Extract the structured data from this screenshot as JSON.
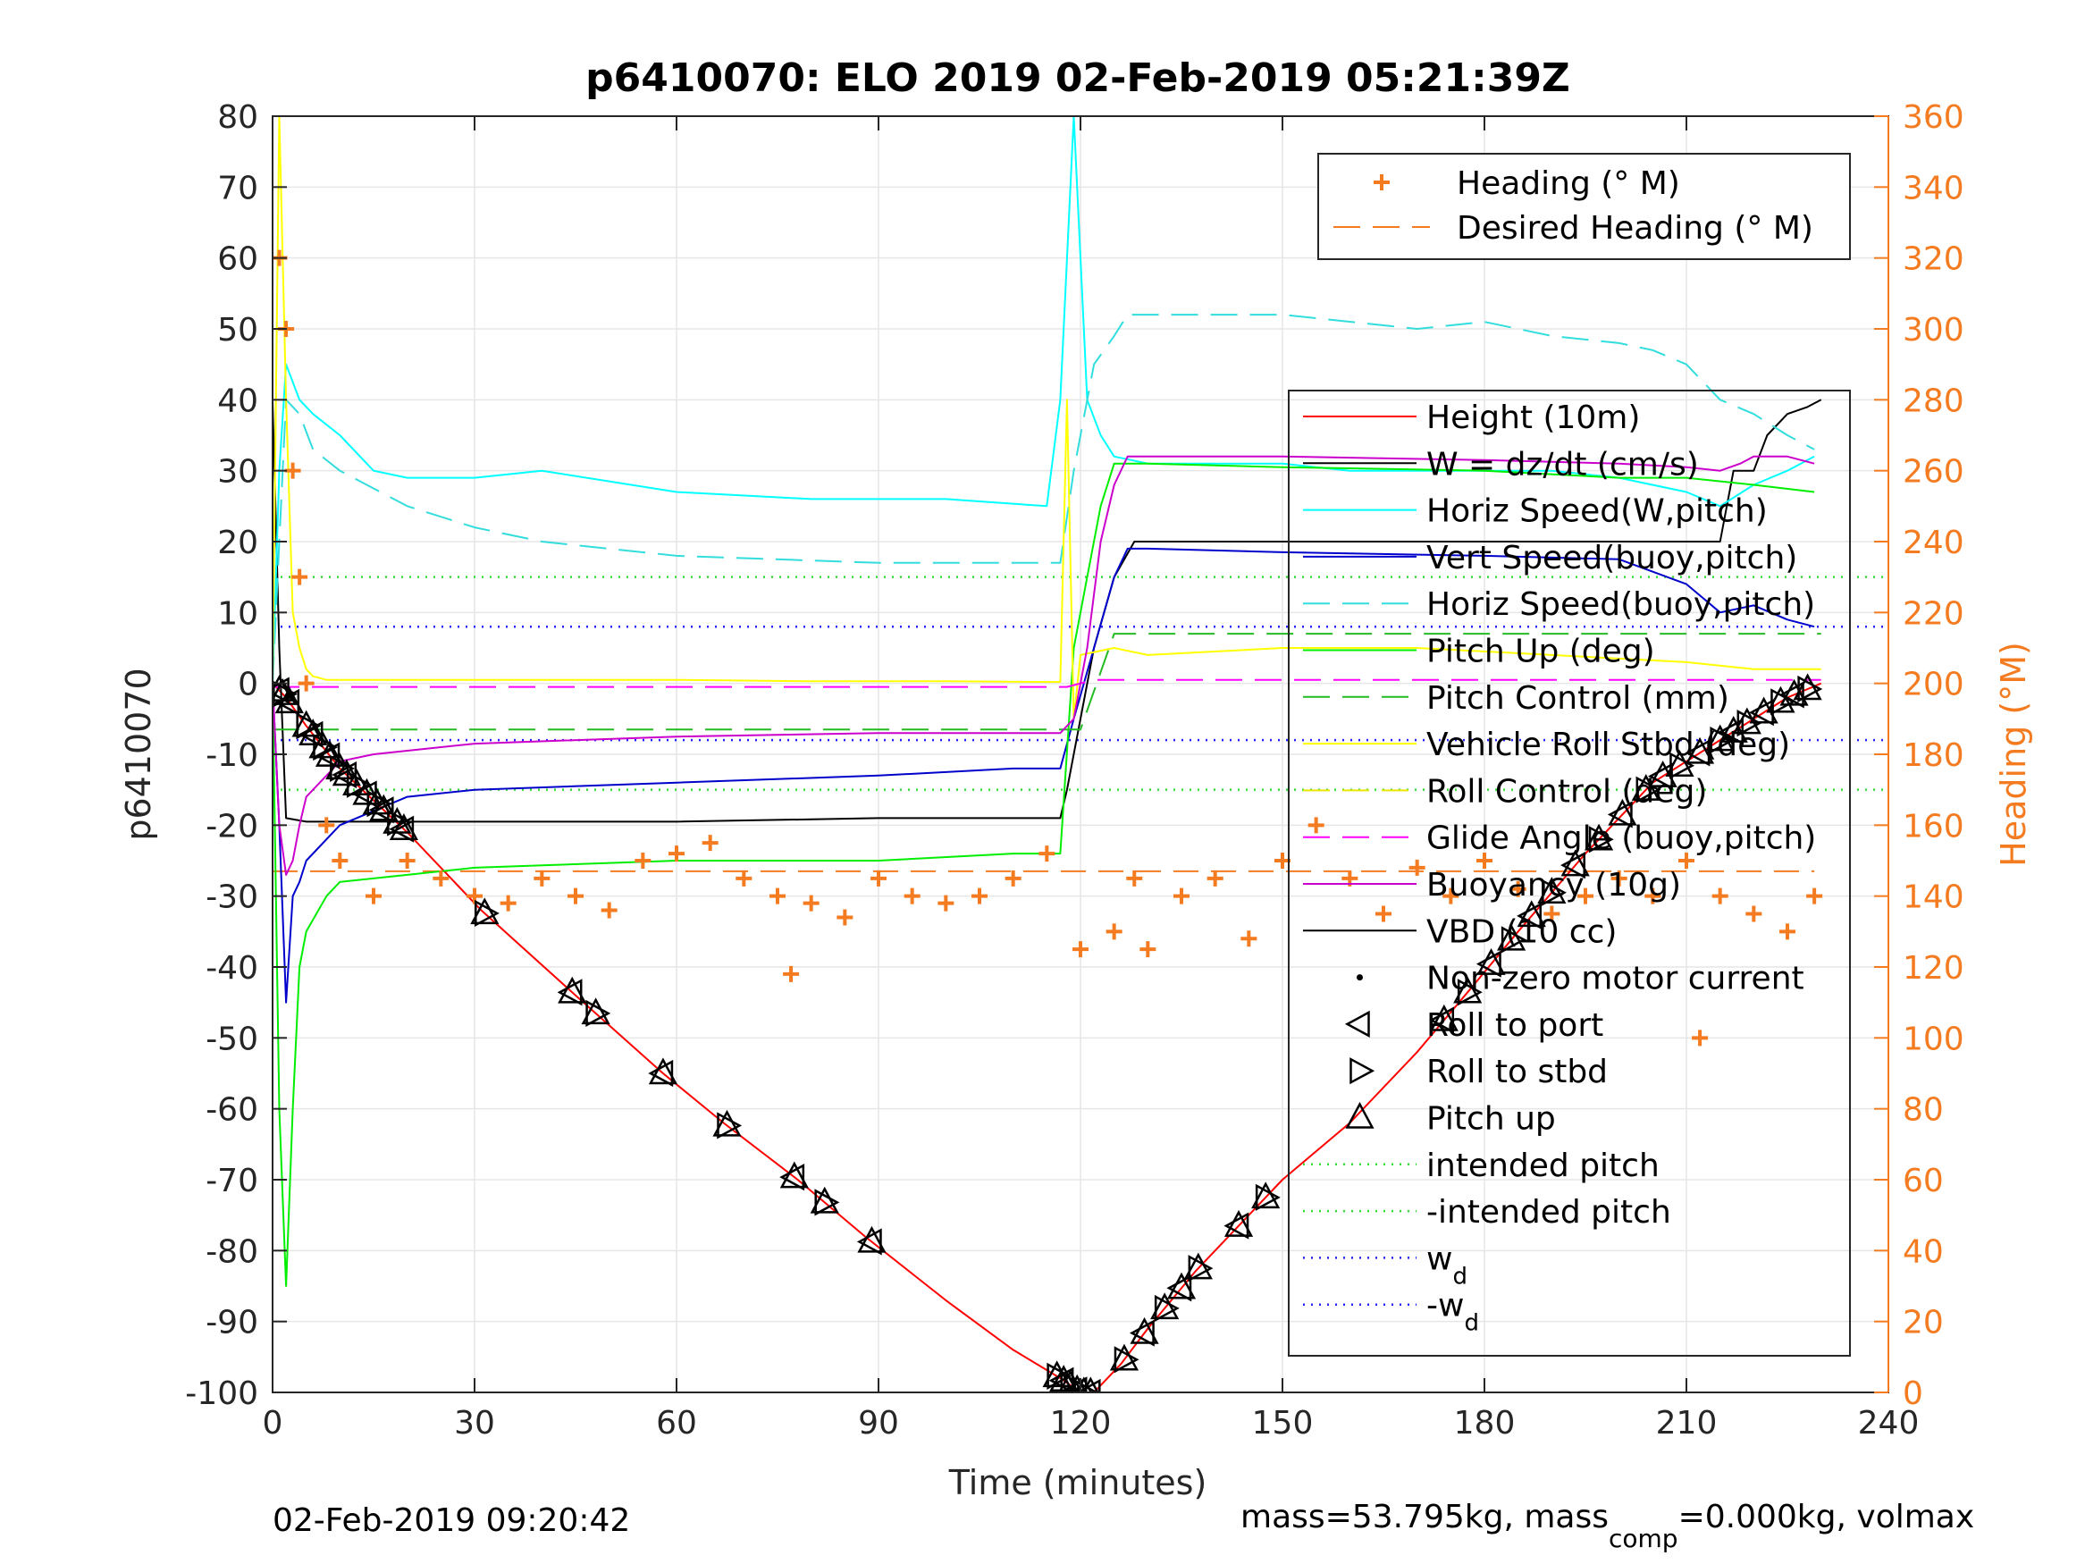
{
  "chart_data": {
    "type": "line",
    "title": "p6410070: ELO 2019 02-Feb-2019 05:21:39Z",
    "xlabel": "Time (minutes)",
    "ylabel": "p6410070",
    "y2label": "Heading (°M)",
    "xlim": [
      0,
      240
    ],
    "ylim": [
      -100,
      80
    ],
    "y2lim": [
      0,
      360
    ],
    "xticks": [
      0,
      30,
      60,
      90,
      120,
      150,
      180,
      210,
      240
    ],
    "yticks": [
      -100,
      -90,
      -80,
      -70,
      -60,
      -50,
      -40,
      -30,
      -20,
      -10,
      0,
      10,
      20,
      30,
      40,
      50,
      60,
      70,
      80
    ],
    "y2ticks": [
      0,
      20,
      40,
      60,
      80,
      100,
      120,
      140,
      160,
      180,
      200,
      220,
      240,
      260,
      280,
      300,
      320,
      340,
      360
    ],
    "grid": true,
    "colors": {
      "height": "#ff0000",
      "w": "#000000",
      "horiz_w": "#00ffff",
      "vert_buoy": "#0000cc",
      "horiz_buoy": "#33dddd",
      "pitch_up": "#00ee00",
      "pitch_control": "#22bb22",
      "roll_stbd": "#ffff00",
      "roll_control": "#e6e600",
      "glide_angle": "#ff00ff",
      "buoyancy": "#cc00cc",
      "vbd": "#000000",
      "heading": "#f47b20",
      "intended_pitch": "#33dd33",
      "wd": "#2222ff"
    },
    "legend_right": {
      "placement": "right",
      "entries": [
        {
          "label": "Height (10m)",
          "style": "solid",
          "color": "#ff0000"
        },
        {
          "label": "W = dz/dt (cm/s)",
          "style": "solid",
          "color": "#000000"
        },
        {
          "label": "Horiz Speed(W,pitch)",
          "style": "solid",
          "color": "#00ffff"
        },
        {
          "label": "Vert Speed(buoy,pitch)",
          "style": "solid",
          "color": "#0000cc"
        },
        {
          "label": "Horiz Speed(buoy,pitch)",
          "style": "dashed",
          "color": "#33dddd"
        },
        {
          "label": "Pitch Up (deg)",
          "style": "solid",
          "color": "#00ee00"
        },
        {
          "label": "Pitch Control (mm)",
          "style": "dashed",
          "color": "#22bb22"
        },
        {
          "label": "Vehicle Roll Stbd (deg)",
          "style": "solid",
          "color": "#ffff00"
        },
        {
          "label": "Roll Control (deg)",
          "style": "dashed",
          "color": "#e6e600"
        },
        {
          "label": "Glide Angle (buoy,pitch)",
          "style": "dashed",
          "color": "#ff00ff"
        },
        {
          "label": "Buoyancy (10g)",
          "style": "solid",
          "color": "#cc00cc"
        },
        {
          "label": "VBD (10 cc)",
          "style": "solid",
          "color": "#000000"
        },
        {
          "label": "Non-zero motor current",
          "style": "dot",
          "color": "#000000"
        },
        {
          "label": "Roll to port",
          "style": "tri-left",
          "color": "#000000"
        },
        {
          "label": "Roll to stbd",
          "style": "tri-right",
          "color": "#000000"
        },
        {
          "label": "Pitch up",
          "style": "tri-up",
          "color": "#000000"
        },
        {
          "label": "intended pitch",
          "style": "dotted",
          "color": "#33dd33"
        },
        {
          "label": "-intended pitch",
          "style": "dotted",
          "color": "#33dd33"
        },
        {
          "label": "w",
          "sub": "d",
          "style": "dotted",
          "color": "#2222ff"
        },
        {
          "label": "-w",
          "sub": "d",
          "style": "dotted",
          "color": "#2222ff"
        }
      ]
    },
    "legend_top": {
      "placement": "top-right",
      "entries": [
        {
          "label": "Heading (° M)",
          "style": "plus",
          "color": "#f47b20"
        },
        {
          "label": "Desired Heading (° M)",
          "style": "dashed",
          "color": "#f47b20"
        }
      ]
    },
    "reference_lines": {
      "intended_pitch": 15,
      "neg_intended_pitch": -15,
      "wd": 8,
      "neg_wd": -8,
      "desired_heading": 147
    },
    "series": [
      {
        "name": "Height (10m)",
        "x": [
          0,
          2,
          5,
          10,
          20,
          31,
          45,
          58,
          67,
          78,
          88,
          100,
          110,
          117,
          120,
          122,
          126,
          130,
          137,
          145,
          150,
          160,
          170,
          178,
          185,
          195,
          205,
          215,
          225,
          230
        ],
        "y": [
          0,
          -2,
          -6,
          -12,
          -21,
          -32,
          -44,
          -55,
          -62,
          -70,
          -78,
          -87,
          -94,
          -98,
          -100,
          -100,
          -96,
          -91,
          -83,
          -75,
          -70,
          -62,
          -52,
          -43,
          -35,
          -24,
          -14,
          -8,
          -2,
          0
        ]
      },
      {
        "name": "W = dz/dt (cm/s)",
        "x": [
          0,
          1,
          2,
          5,
          10,
          30,
          60,
          90,
          117,
          118,
          120,
          122,
          125,
          128,
          150,
          180,
          200,
          210,
          215,
          217,
          220,
          222,
          225,
          228,
          230
        ],
        "y": [
          40,
          5,
          -19,
          -19.5,
          -19.5,
          -19.5,
          -19.5,
          -19,
          -19,
          -15,
          -5,
          5,
          15,
          20,
          20,
          20,
          20,
          20,
          20,
          30,
          30,
          35,
          38,
          39,
          40
        ]
      },
      {
        "name": "Horiz Speed(W,pitch)",
        "x": [
          0,
          1,
          2,
          4,
          6,
          10,
          15,
          20,
          30,
          40,
          60,
          80,
          100,
          115,
          117,
          119,
          121,
          123,
          125,
          130,
          140,
          150,
          160,
          170,
          180,
          190,
          200,
          210,
          215,
          220,
          225,
          229
        ],
        "y": [
          0,
          30,
          45,
          40,
          38,
          35,
          30,
          29,
          29,
          30,
          27,
          26,
          26,
          25,
          40,
          80,
          40,
          35,
          32,
          31,
          31,
          31,
          30,
          30,
          30,
          30,
          29,
          27,
          25,
          28,
          30,
          32
        ]
      },
      {
        "name": "Vert Speed(buoy,pitch)",
        "x": [
          0,
          1,
          2,
          3,
          4,
          5,
          10,
          20,
          30,
          60,
          90,
          110,
          117,
          119,
          122,
          125,
          127,
          130,
          150,
          180,
          200,
          210,
          215,
          220,
          225,
          229
        ],
        "y": [
          0,
          -20,
          -45,
          -30,
          -28,
          -25,
          -20,
          -16,
          -15,
          -14,
          -13,
          -12,
          -12,
          -5,
          5,
          15,
          19,
          19,
          18.5,
          18,
          17.5,
          14,
          10,
          11,
          9,
          8
        ]
      },
      {
        "name": "Horiz Speed(buoy,pitch)",
        "x": [
          0,
          1,
          2,
          4,
          6,
          10,
          20,
          30,
          40,
          60,
          90,
          110,
          117,
          119,
          122,
          125,
          127,
          130,
          150,
          170,
          180,
          190,
          200,
          205,
          210,
          215,
          220,
          225,
          229
        ],
        "y": [
          0,
          20,
          40,
          38,
          33,
          30,
          25,
          22,
          20,
          18,
          17,
          17,
          17,
          30,
          45,
          49,
          52,
          52,
          52,
          50,
          51,
          49,
          48,
          47,
          45,
          40,
          38,
          35,
          33
        ]
      },
      {
        "name": "Pitch Up (deg)",
        "x": [
          0,
          1,
          2,
          3,
          4,
          5,
          8,
          10,
          20,
          30,
          60,
          90,
          110,
          117,
          119,
          121,
          123,
          125,
          130,
          150,
          180,
          200,
          210,
          220,
          229
        ],
        "y": [
          0,
          -60,
          -85,
          -60,
          -40,
          -35,
          -30,
          -28,
          -27,
          -26,
          -25,
          -25,
          -24,
          -24,
          5,
          15,
          25,
          31,
          31,
          30.5,
          30,
          29,
          29,
          28,
          27
        ]
      },
      {
        "name": "Pitch Control (mm)",
        "x": [
          0,
          120,
          125,
          230
        ],
        "y": [
          -6.5,
          -6.5,
          7,
          7
        ]
      },
      {
        "name": "Vehicle Roll Stbd (deg)",
        "x": [
          0,
          1,
          2,
          3,
          4,
          5,
          6,
          8,
          10,
          20,
          40,
          60,
          80,
          100,
          117,
          118,
          119,
          120,
          125,
          130,
          150,
          170,
          190,
          210,
          220,
          230
        ],
        "y": [
          0,
          80,
          40,
          10,
          5,
          2,
          1,
          0.5,
          0.5,
          0.5,
          0.5,
          0.5,
          0.3,
          0.3,
          0.2,
          40,
          -5,
          4,
          5,
          4,
          5,
          5,
          4,
          3,
          2,
          2
        ]
      },
      {
        "name": "Glide Angle (buoy,pitch)",
        "x": [
          0,
          118,
          122,
          230
        ],
        "y": [
          -0.5,
          -0.5,
          0.5,
          0.5
        ]
      },
      {
        "name": "Buoyancy (10g)",
        "x": [
          0,
          1,
          2,
          3,
          4,
          5,
          8,
          10,
          15,
          20,
          30,
          60,
          90,
          117,
          119,
          121,
          123,
          125,
          127,
          150,
          180,
          200,
          210,
          215,
          218,
          220,
          225,
          229
        ],
        "y": [
          0,
          -20,
          -27,
          -25,
          -20,
          -16,
          -13,
          -11,
          -10,
          -9.5,
          -8.5,
          -7.5,
          -7,
          -7,
          -5,
          5,
          20,
          28,
          32,
          32,
          31.5,
          31,
          30.5,
          30,
          31,
          32,
          32,
          31
        ]
      },
      {
        "name": "Heading (° M)",
        "x": [
          1,
          2,
          3,
          4,
          5,
          8,
          10,
          15,
          20,
          25,
          30,
          35,
          40,
          45,
          50,
          55,
          60,
          65,
          70,
          75,
          77,
          80,
          85,
          90,
          95,
          100,
          105,
          110,
          115,
          120,
          125,
          128,
          130,
          135,
          140,
          145,
          150,
          155,
          160,
          165,
          170,
          175,
          180,
          185,
          190,
          195,
          200,
          205,
          210,
          212,
          215,
          220,
          225,
          229
        ],
        "y": [
          320,
          300,
          260,
          230,
          200,
          160,
          150,
          140,
          150,
          145,
          140,
          138,
          145,
          140,
          136,
          150,
          152,
          155,
          145,
          140,
          118,
          138,
          134,
          145,
          140,
          138,
          140,
          145,
          152,
          125,
          130,
          145,
          125,
          140,
          145,
          128,
          150,
          160,
          145,
          135,
          148,
          140,
          150,
          142,
          135,
          140,
          145,
          140,
          150,
          100,
          140,
          135,
          130,
          140
        ]
      }
    ],
    "motor_events": {
      "pitch_up_roll_x": [
        1,
        1.5,
        2.5,
        5,
        6,
        7.5,
        8.5,
        10,
        11,
        12.5,
        14,
        15.5,
        16.5,
        18.5,
        19.5,
        31.5,
        44.5,
        48,
        58,
        67.5,
        77.5,
        82,
        89,
        116.5,
        117.5,
        118.5,
        119.5,
        120.5,
        121.5,
        126.5,
        129.5,
        132.5,
        135,
        137.5,
        143.5,
        147.5,
        174,
        177.5,
        181,
        184,
        187,
        190,
        193.5,
        197,
        200.5,
        204,
        206.5,
        209,
        212,
        215,
        217,
        219,
        221.5,
        224,
        226,
        228
      ]
    }
  },
  "footer": {
    "left": "02-Feb-2019 09:20:42",
    "right_prefix": "mass=53.795kg, mass",
    "right_sub": "comp",
    "right_suffix": "=0.000kg, volmax"
  }
}
